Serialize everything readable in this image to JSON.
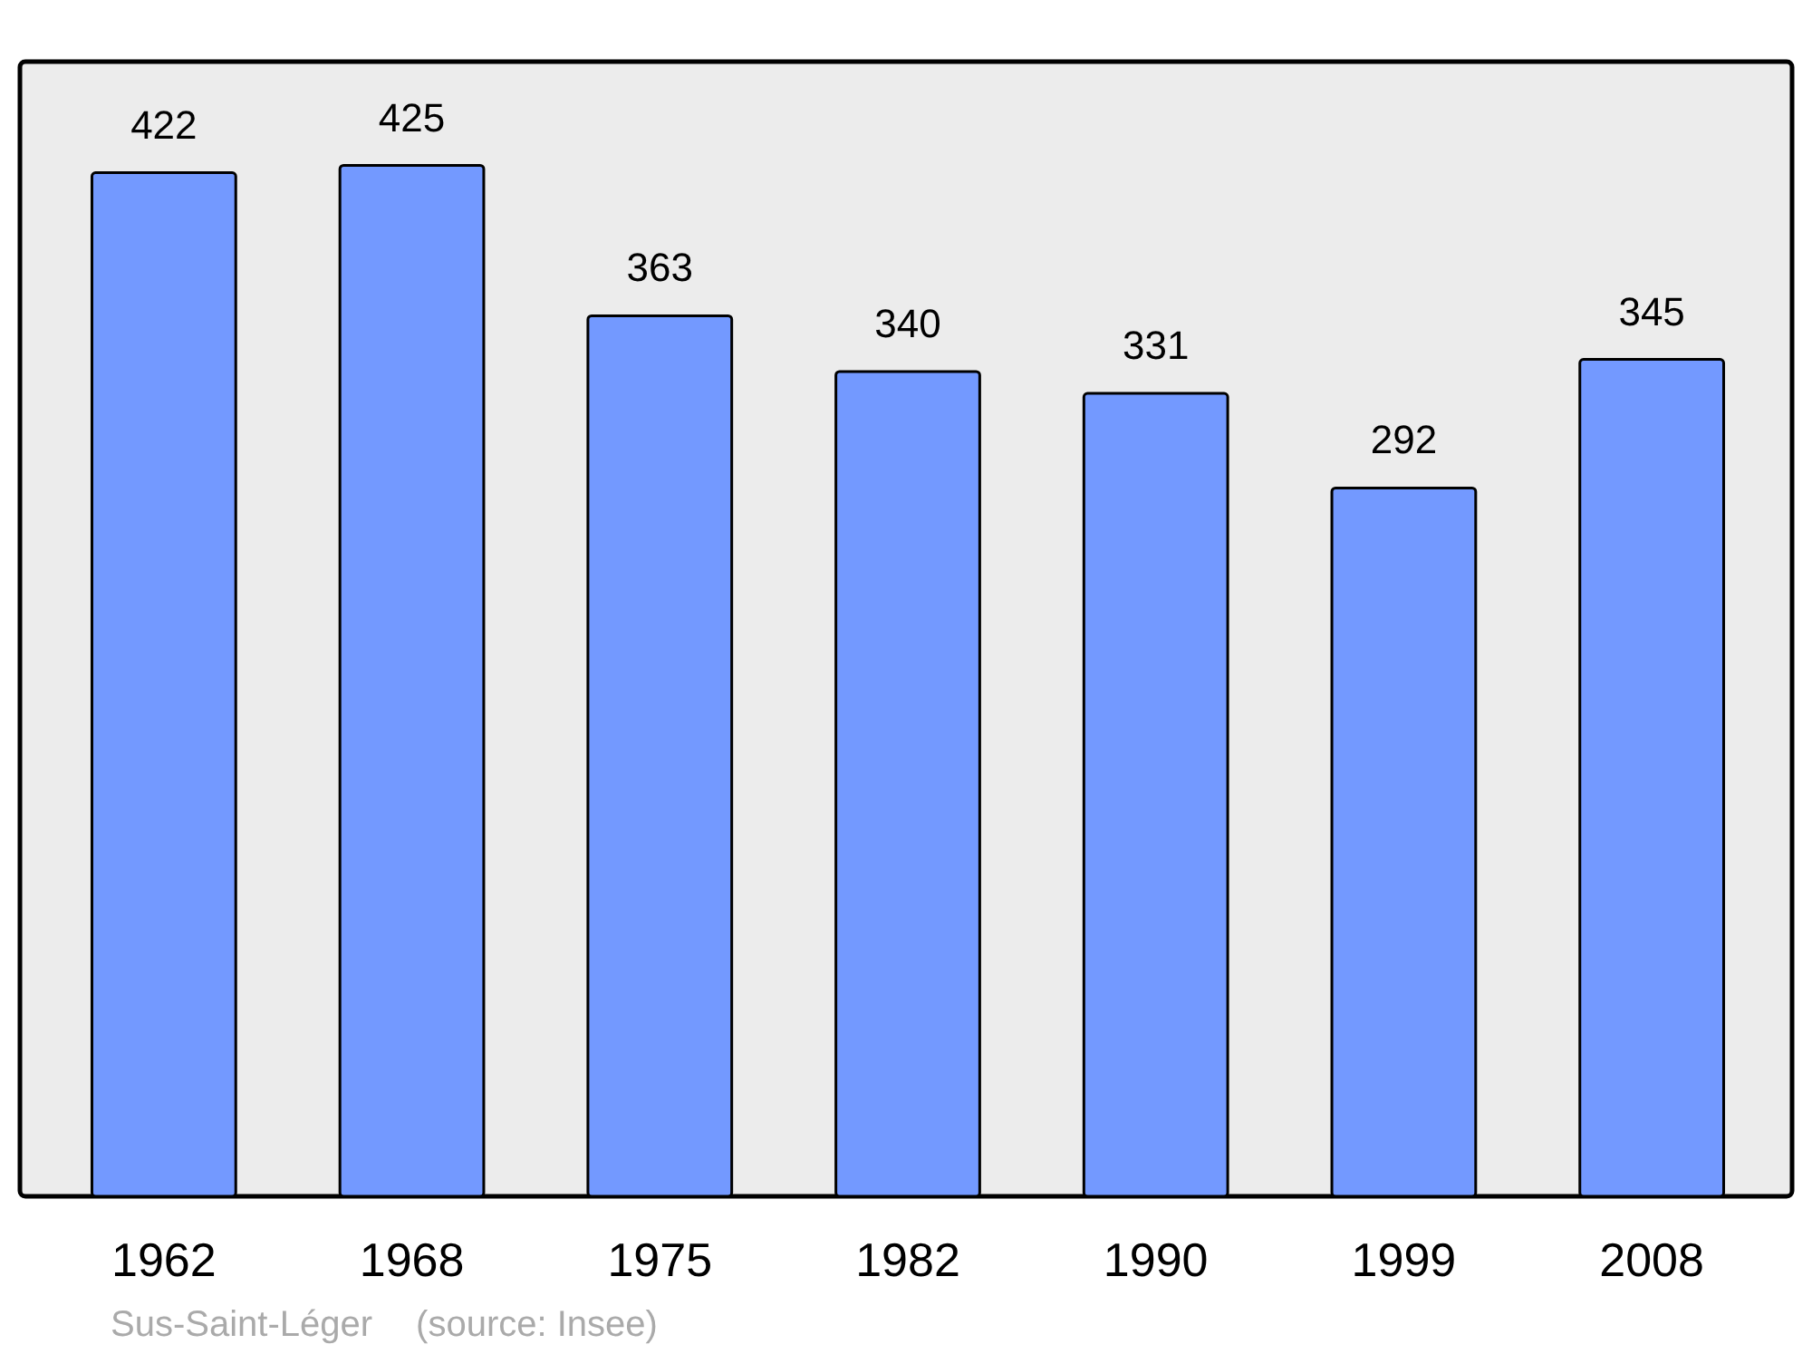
{
  "chart_data": {
    "type": "bar",
    "title": "Sus-Saint-Léger",
    "annotations": [
      "(source: Insee)"
    ],
    "categories": [
      "1962",
      "1968",
      "1975",
      "1982",
      "1990",
      "1999",
      "2008"
    ],
    "values": [
      422,
      425,
      363,
      340,
      331,
      292,
      345
    ],
    "color": "#7399ff",
    "data_labels": true
  }
}
